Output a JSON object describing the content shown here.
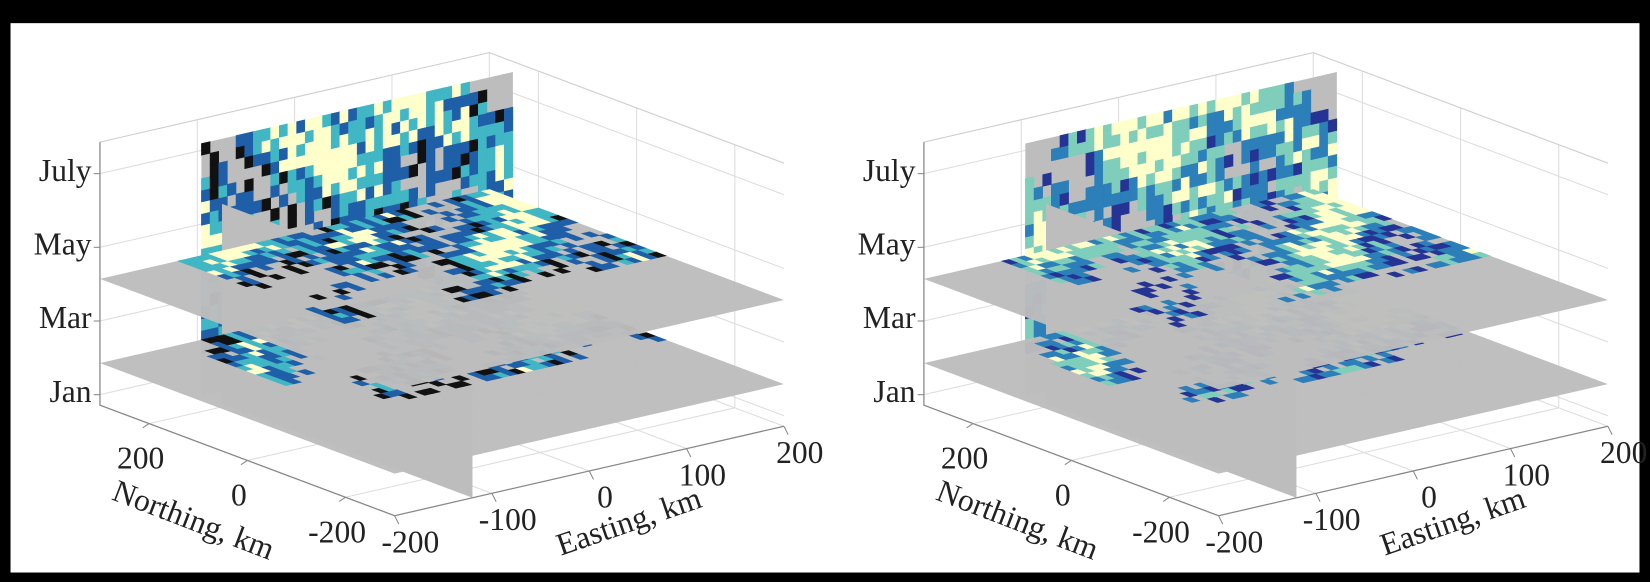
{
  "chart_data": [
    {
      "type": "slice3d",
      "xlabel": "Easting, km",
      "ylabel": "Northing, km",
      "z_categories": [
        "Jan",
        "Mar",
        "May",
        "July"
      ],
      "xlim": [
        -200,
        200
      ],
      "xticks": [
        -200,
        -100,
        0,
        100,
        200
      ],
      "ylim": [
        -300,
        300
      ],
      "yticks": [
        -200,
        0,
        200
      ],
      "grid": true,
      "slice_color": "#bdbdbd",
      "colors": [
        "#111111",
        "#1f5fa8",
        "#41b6c4",
        "#ffffcc"
      ]
    },
    {
      "type": "slice3d",
      "xlabel": "Easting, km",
      "ylabel": "Northing, km",
      "z_categories": [
        "Jan",
        "Mar",
        "May",
        "July"
      ],
      "xlim": [
        -200,
        200
      ],
      "xticks": [
        -200,
        -100,
        0,
        100,
        200
      ],
      "ylim": [
        -300,
        300
      ],
      "yticks": [
        -200,
        0,
        200
      ],
      "grid": true,
      "slice_color": "#bdbdbd",
      "colors": [
        "#253494",
        "#2c7fb8",
        "#7fcdbb",
        "#ffffcc"
      ]
    }
  ]
}
